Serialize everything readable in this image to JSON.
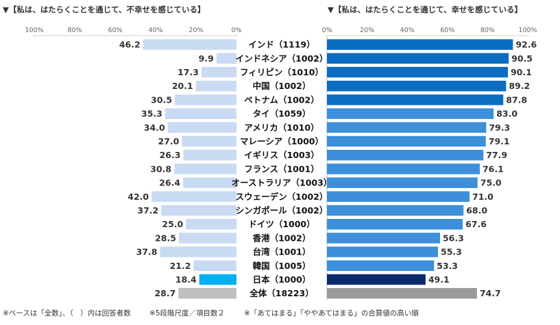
{
  "chart_data": [
    {
      "type": "bar",
      "orientation": "horizontal",
      "direction": "right-to-left",
      "title": "▼【私は、はたらくことを通じて、不幸せを感じている】",
      "xlim": [
        0,
        100
      ],
      "ticks": [
        "100%",
        "80%",
        "60%",
        "40%",
        "20%",
        "0%"
      ],
      "categories": [
        "インド（1119）",
        "インドネシア（1002）",
        "フィリピン（1010）",
        "中国（1002）",
        "ベトナム（1002）",
        "タイ（1059）",
        "アメリカ（1010）",
        "マレーシア（1000）",
        "イギリス（1003）",
        "フランス（1001）",
        "オーストラリア（1003）",
        "スウェーデン（1002）",
        "シンガポール（1002）",
        "ドイツ（1000）",
        "香港（1002）",
        "台湾（1001）",
        "韓国（1005）",
        "日本（1000）",
        "全体（18223）"
      ],
      "values": [
        46.2,
        9.9,
        17.3,
        20.1,
        30.5,
        35.3,
        34.0,
        27.0,
        26.3,
        30.8,
        26.4,
        42.0,
        37.2,
        25.0,
        28.5,
        37.8,
        21.2,
        18.4,
        28.7
      ],
      "labels": [
        "46.2",
        "9.9",
        "17.3",
        "20.1",
        "30.5",
        "35.3",
        "34.0",
        "27.0",
        "26.3",
        "30.8",
        "26.4",
        "42.0",
        "37.2",
        "25.0",
        "28.5",
        "37.8",
        "21.2",
        "18.4",
        "28.7"
      ]
    },
    {
      "type": "bar",
      "orientation": "horizontal",
      "direction": "left-to-right",
      "title": "▼【私は、はたらくことを通じて、幸せを感じている】",
      "xlim": [
        0,
        100
      ],
      "ticks": [
        "0%",
        "20%",
        "40%",
        "60%",
        "80%",
        "100%"
      ],
      "categories": [
        "インド（1119）",
        "インドネシア（1002）",
        "フィリピン（1010）",
        "中国（1002）",
        "ベトナム（1002）",
        "タイ（1059）",
        "アメリカ（1010）",
        "マレーシア（1000）",
        "イギリス（1003）",
        "フランス（1001）",
        "オーストラリア（1003）",
        "スウェーデン（1002）",
        "シンガポール（1002）",
        "ドイツ（1000）",
        "香港（1002）",
        "台湾（1001）",
        "韓国（1005）",
        "日本（1000）",
        "全体（18223）"
      ],
      "values": [
        92.6,
        90.5,
        90.1,
        89.2,
        87.8,
        83.0,
        79.3,
        79.1,
        77.9,
        76.1,
        75.0,
        71.0,
        68.0,
        67.6,
        56.3,
        55.3,
        53.3,
        49.1,
        74.7
      ],
      "labels": [
        "92.6",
        "90.5",
        "90.1",
        "89.2",
        "87.8",
        "83.0",
        "79.3",
        "79.1",
        "77.9",
        "76.1",
        "75.0",
        "71.0",
        "68.0",
        "67.6",
        "56.3",
        "55.3",
        "53.3",
        "49.1",
        "74.7"
      ]
    }
  ],
  "colors": {
    "left_bar": "#c9daf3",
    "left_japan": "#00b0f0",
    "left_total": "#bfbfbf",
    "right_dark": "#0a6dc2",
    "right_light": "#3d8fd9",
    "right_japan": "#0a2a6b",
    "right_total": "#9a9a9a"
  },
  "notes": [
    "※ベースは「全数」、（　）内は回答者数",
    "※5段階尺度／項目数２",
    "※「あてはまる」「ややあてはまる」の合算値の高い順"
  ]
}
